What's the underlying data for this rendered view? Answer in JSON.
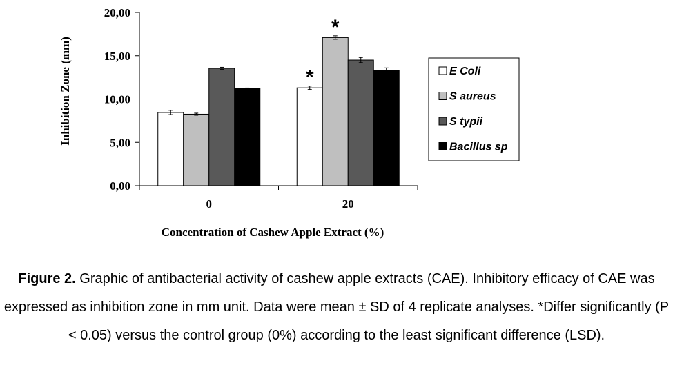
{
  "chart_data": {
    "type": "bar",
    "ylabel": "Inhibition Zone (mm)",
    "xlabel": "Concentration  of Cashew Apple Extract  (%)",
    "categories": [
      "0",
      "20"
    ],
    "ylim": [
      0,
      20
    ],
    "yticks": [
      "0,00",
      "5,00",
      "10,00",
      "15,00",
      "20,00"
    ],
    "ytick_values": [
      0,
      5,
      10,
      15,
      20
    ],
    "grid": false,
    "legend_position": "right",
    "series": [
      {
        "name": "E Coli",
        "values": [
          8.45,
          11.3
        ],
        "errors": [
          0.25,
          0.2
        ],
        "color": "#ffffff",
        "significant": [
          false,
          true
        ]
      },
      {
        "name": "S aureus",
        "values": [
          8.25,
          17.1
        ],
        "errors": [
          0.12,
          0.2
        ],
        "color": "#bfbfbf",
        "significant": [
          false,
          true
        ]
      },
      {
        "name": "S typii",
        "values": [
          13.55,
          14.5
        ],
        "errors": [
          0.12,
          0.3
        ],
        "color": "#595959",
        "significant": [
          false,
          false
        ]
      },
      {
        "name": "Bacillus sp",
        "values": [
          11.2,
          13.3
        ],
        "errors": [
          0.08,
          0.3
        ],
        "color": "#000000",
        "significant": [
          false,
          false
        ]
      }
    ],
    "annotation_symbol": "*"
  },
  "caption": {
    "label": "Figure 2.",
    "text": " Graphic of antibacterial activity of cashew apple extracts (CAE).  Inhibitory efficacy of CAE was expressed as inhibition zone in mm unit. Data were mean ± SD of 4 replicate analyses. *Differ significantly (P < 0.05) versus the control group (0%) according to the least significant difference (LSD)."
  }
}
